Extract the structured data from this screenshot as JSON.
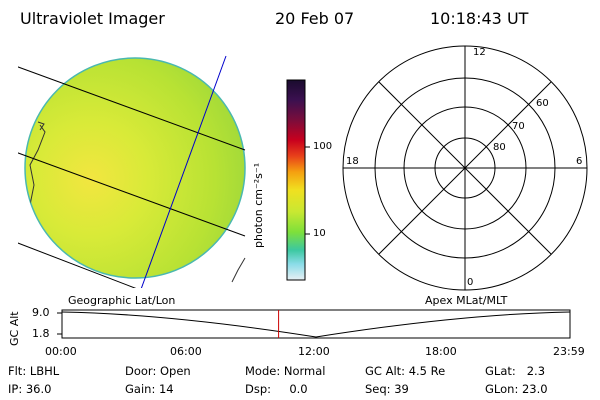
{
  "header": {
    "title": "Ultraviolet Imager",
    "date": "20 Feb 07",
    "time": "10:18:43 UT"
  },
  "colors": {
    "background": "#ffffff",
    "earth_disk": "#c8e832",
    "grid_line": "#000000",
    "meridian_line": "#0000cc",
    "cursor_line": "#cc0000"
  },
  "colorbar": {
    "unit_label": "photon cm⁻²s⁻¹",
    "tick_labels": [
      "100",
      "10"
    ],
    "stops": [
      "#1a0b2e",
      "#3b1050",
      "#7a0d3b",
      "#c8001e",
      "#e8401a",
      "#f5a010",
      "#f0e020",
      "#c8e832",
      "#7ee03a",
      "#3cc8a0",
      "#8adce8",
      "#e0eef4"
    ]
  },
  "left_panel": {
    "label": "Geographic Lat/Lon"
  },
  "right_panel": {
    "label": "Apex MLat/MLT",
    "mlt_labels": [
      "12",
      "18",
      "6",
      "0"
    ],
    "mlat_labels": [
      "60",
      "70",
      "80"
    ]
  },
  "timeline": {
    "y_axis_label": "GC Alt",
    "y_ticks": [
      "9.0",
      "1.8"
    ],
    "x_ticks": [
      "00:00",
      "06:00",
      "12:00",
      "18:00",
      "23:59"
    ],
    "cursor_time_fraction": 0.4263
  },
  "status": {
    "row1": [
      {
        "key": "Flt:",
        "value": "LBHL"
      },
      {
        "key": "Door:",
        "value": "Open"
      },
      {
        "key": "Mode:",
        "value": "Normal"
      },
      {
        "key": "GC Alt:",
        "value": "4.5 Re"
      },
      {
        "key": "GLat:",
        "value": "2.3"
      }
    ],
    "row2": [
      {
        "key": "IP:",
        "value": "36.0"
      },
      {
        "key": "Gain:",
        "value": "14"
      },
      {
        "key": "Dsp:",
        "value": "0.0"
      },
      {
        "key": "Seq:",
        "value": "39"
      },
      {
        "key": "GLon:",
        "value": "23.0"
      }
    ]
  }
}
